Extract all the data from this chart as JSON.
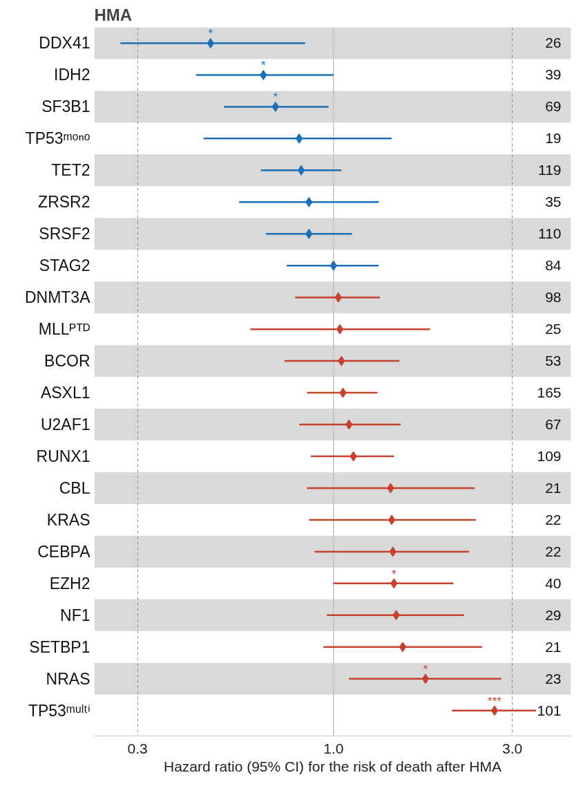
{
  "chart_data": {
    "type": "scatter",
    "orientation": "horizontal",
    "title": "HMA",
    "xlabel": "Hazard ratio (95% CI) for the risk of death after HMA",
    "categories": [
      "DDX41",
      "IDH2",
      "SF3B1",
      "TP53ᵐᵒⁿᵒ",
      "TET2",
      "ZRSR2",
      "SRSF2",
      "STAG2",
      "DNMT3A",
      "MLLᴾᵀᴰ",
      "BCOR",
      "ASXL1",
      "U2AF1",
      "RUNX1",
      "CBL",
      "KRAS",
      "CEBPA",
      "EZH2",
      "NF1",
      "SETBP1",
      "NRAS",
      "TP53ᵐᵘˡᵗⁱ"
    ],
    "values": [
      0.47,
      0.65,
      0.7,
      0.81,
      0.82,
      0.86,
      0.86,
      1.0,
      1.03,
      1.04,
      1.05,
      1.06,
      1.1,
      1.13,
      1.42,
      1.43,
      1.44,
      1.45,
      1.47,
      1.53,
      1.76,
      2.69
    ],
    "errors": [
      [
        0.27,
        0.84
      ],
      [
        0.43,
        1.0
      ],
      [
        0.51,
        0.97
      ],
      [
        0.45,
        1.43
      ],
      [
        0.64,
        1.05
      ],
      [
        0.56,
        1.32
      ],
      [
        0.66,
        1.12
      ],
      [
        0.75,
        1.32
      ],
      [
        0.79,
        1.33
      ],
      [
        0.6,
        1.81
      ],
      [
        0.74,
        1.5
      ],
      [
        0.85,
        1.31
      ],
      [
        0.81,
        1.51
      ],
      [
        0.87,
        1.45
      ],
      [
        0.85,
        2.38
      ],
      [
        0.86,
        2.4
      ],
      [
        0.89,
        2.3
      ],
      [
        1.0,
        2.09
      ],
      [
        0.96,
        2.23
      ],
      [
        0.94,
        2.49
      ],
      [
        1.1,
        2.8
      ],
      [
        2.07,
        3.47
      ]
    ],
    "colors": [
      "#1a70b8",
      "#1a70b8",
      "#1a70b8",
      "#1a70b8",
      "#1a70b8",
      "#1a70b8",
      "#1a70b8",
      "#1a70b8",
      "#c8412c",
      "#c8412c",
      "#c8412c",
      "#c8412c",
      "#c8412c",
      "#c8412c",
      "#c8412c",
      "#c8412c",
      "#c8412c",
      "#c8412c",
      "#c8412c",
      "#c8412c",
      "#c8412c",
      "#c8412c"
    ],
    "marker": "diamond",
    "log": "x",
    "xlim": [
      0.23,
      4.3
    ],
    "xticks": [
      0.3,
      {
        "value": 1,
        "label": "1.0"
      },
      {
        "value": 3,
        "label": "3.0"
      }
    ],
    "grid": "x",
    "ref_lines": [
      {
        "axis": "x",
        "value": 1,
        "color": "#c0c0c0",
        "line_style": "solid"
      }
    ],
    "bands": [
      {
        "axis": "y",
        "from": "DDX41",
        "to": "DDX41",
        "color": "#d9d9d9"
      },
      {
        "axis": "y",
        "from": "SF3B1",
        "to": "SF3B1",
        "color": "#d9d9d9"
      },
      {
        "axis": "y",
        "from": "TET2",
        "to": "TET2",
        "color": "#d9d9d9"
      },
      {
        "axis": "y",
        "from": "SRSF2",
        "to": "SRSF2",
        "color": "#d9d9d9"
      },
      {
        "axis": "y",
        "from": "DNMT3A",
        "to": "DNMT3A",
        "color": "#d9d9d9"
      },
      {
        "axis": "y",
        "from": "BCOR",
        "to": "BCOR",
        "color": "#d9d9d9"
      },
      {
        "axis": "y",
        "from": "U2AF1",
        "to": "U2AF1",
        "color": "#d9d9d9"
      },
      {
        "axis": "y",
        "from": "CBL",
        "to": "CBL",
        "color": "#d9d9d9"
      },
      {
        "axis": "y",
        "from": "CEBPA",
        "to": "CEBPA",
        "color": "#d9d9d9"
      },
      {
        "axis": "y",
        "from": "NF1",
        "to": "NF1",
        "color": "#d9d9d9"
      },
      {
        "axis": "y",
        "from": "NRAS",
        "to": "NRAS",
        "color": "#d9d9d9"
      }
    ],
    "annotations": [
      {
        "text": "*",
        "x": 0.47,
        "y": "DDX41"
      },
      {
        "text": "*",
        "x": 0.65,
        "y": "IDH2"
      },
      {
        "text": "*",
        "x": 0.7,
        "y": "SF3B1"
      },
      {
        "text": "*",
        "x": 1.45,
        "y": "EZH2"
      },
      {
        "text": "*",
        "x": 1.76,
        "y": "NRAS"
      },
      {
        "text": "***",
        "x": 2.69,
        "y": "TP53ᵐᵘˡᵗⁱ"
      },
      "26",
      "39",
      "69",
      "19",
      "119",
      "35",
      "110",
      "84",
      "98",
      "25",
      "53",
      "165",
      "67",
      "109",
      "21",
      "22",
      "22",
      "40",
      "29",
      "21",
      "23",
      "101"
    ]
  }
}
